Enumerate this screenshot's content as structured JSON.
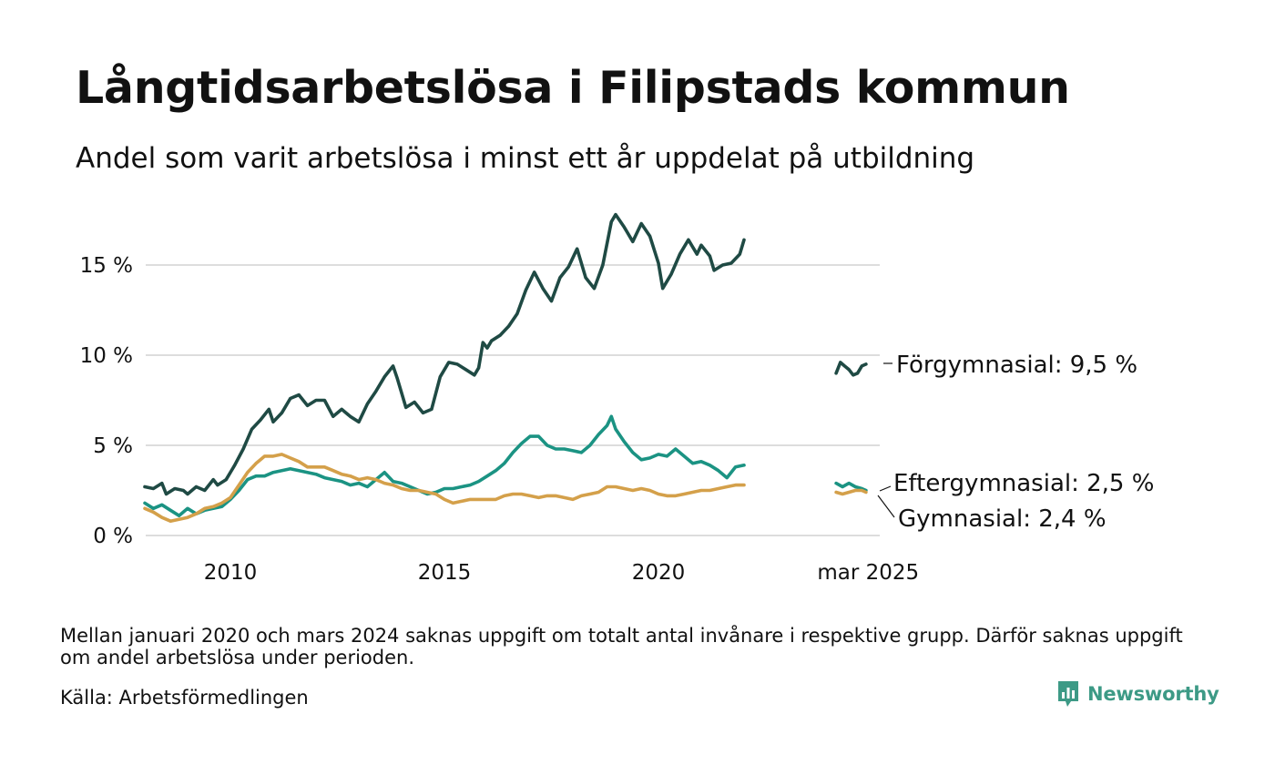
{
  "title": "Långtidsarbetslösa i Filipstads kommun",
  "subtitle": "Andel som varit arbetslösa i minst ett år uppdelat på utbildning",
  "note": "Mellan januari 2020 och mars 2024 saknas uppgift om totalt antal invånare i respektive grupp. Därför saknas uppgift om andel arbetslösa under perioden.",
  "source": "Källa: Arbetsförmedlingen",
  "brand": {
    "name": "Newsworthy",
    "color": "#3d9a86"
  },
  "chart_data": {
    "type": "line",
    "title": "Långtidsarbetslösa i Filipstads kommun",
    "subtitle": "Andel som varit arbetslösa i minst ett år uppdelat på utbildning",
    "x_ticks": [
      {
        "x": 2010.0,
        "label": "2010"
      },
      {
        "x": 2015.0,
        "label": "2015"
      },
      {
        "x": 2020.0,
        "label": "2020"
      },
      {
        "x": 2024.9,
        "label": "mar 2025"
      }
    ],
    "y_ticks": [
      {
        "y": 0,
        "label": "0 %"
      },
      {
        "y": 5,
        "label": "5 %"
      },
      {
        "y": 10,
        "label": "10 %"
      },
      {
        "y": 15,
        "label": "15 %"
      }
    ],
    "xlim": [
      2007.95,
      2025.35
    ],
    "ylim": [
      0,
      18
    ],
    "grid": true,
    "series": [
      {
        "name": "Förgymnasial",
        "end_label": "Förgymnasial: 9,5 %",
        "color": "#1f4a44",
        "segments": [
          [
            [
              2008.0,
              2.7
            ],
            [
              2008.2,
              2.6
            ],
            [
              2008.4,
              2.9
            ],
            [
              2008.5,
              2.3
            ],
            [
              2008.7,
              2.6
            ],
            [
              2008.9,
              2.5
            ],
            [
              2009.0,
              2.3
            ],
            [
              2009.2,
              2.7
            ],
            [
              2009.4,
              2.5
            ],
            [
              2009.6,
              3.1
            ],
            [
              2009.7,
              2.8
            ],
            [
              2009.9,
              3.1
            ],
            [
              2010.1,
              3.9
            ],
            [
              2010.3,
              4.8
            ],
            [
              2010.5,
              5.9
            ],
            [
              2010.7,
              6.4
            ],
            [
              2010.9,
              7.0
            ],
            [
              2011.0,
              6.3
            ],
            [
              2011.2,
              6.8
            ],
            [
              2011.4,
              7.6
            ],
            [
              2011.6,
              7.8
            ],
            [
              2011.8,
              7.2
            ],
            [
              2012.0,
              7.5
            ],
            [
              2012.2,
              7.5
            ],
            [
              2012.4,
              6.6
            ],
            [
              2012.6,
              7.0
            ],
            [
              2012.8,
              6.6
            ],
            [
              2013.0,
              6.3
            ],
            [
              2013.2,
              7.3
            ],
            [
              2013.4,
              8.0
            ],
            [
              2013.6,
              8.8
            ],
            [
              2013.8,
              9.4
            ],
            [
              2013.9,
              8.7
            ],
            [
              2014.1,
              7.1
            ],
            [
              2014.3,
              7.4
            ],
            [
              2014.5,
              6.8
            ],
            [
              2014.7,
              7.0
            ],
            [
              2014.9,
              8.8
            ],
            [
              2015.1,
              9.6
            ],
            [
              2015.3,
              9.5
            ],
            [
              2015.5,
              9.2
            ],
            [
              2015.7,
              8.9
            ],
            [
              2015.8,
              9.3
            ],
            [
              2015.9,
              10.7
            ],
            [
              2016.0,
              10.4
            ],
            [
              2016.1,
              10.8
            ],
            [
              2016.3,
              11.1
            ],
            [
              2016.5,
              11.6
            ],
            [
              2016.7,
              12.3
            ],
            [
              2016.9,
              13.6
            ],
            [
              2017.1,
              14.6
            ],
            [
              2017.3,
              13.7
            ],
            [
              2017.5,
              13.0
            ],
            [
              2017.7,
              14.3
            ],
            [
              2017.9,
              14.9
            ],
            [
              2018.1,
              15.9
            ],
            [
              2018.3,
              14.3
            ],
            [
              2018.5,
              13.7
            ],
            [
              2018.7,
              15.0
            ],
            [
              2018.9,
              17.4
            ],
            [
              2019.0,
              17.8
            ],
            [
              2019.2,
              17.1
            ],
            [
              2019.4,
              16.3
            ],
            [
              2019.6,
              17.3
            ],
            [
              2019.8,
              16.6
            ],
            [
              2020.0,
              15.1
            ],
            [
              2020.1,
              13.7
            ],
            [
              2020.3,
              14.5
            ],
            [
              2020.5,
              15.6
            ],
            [
              2020.7,
              16.4
            ],
            [
              2020.9,
              15.6
            ],
            [
              2021.0,
              16.1
            ],
            [
              2021.2,
              15.5
            ],
            [
              2021.3,
              14.7
            ],
            [
              2021.5,
              15.0
            ],
            [
              2021.7,
              15.1
            ],
            [
              2021.9,
              15.6
            ],
            [
              2022.0,
              16.4
            ]
          ],
          [
            [
              2024.15,
              9.0
            ],
            [
              2024.25,
              9.6
            ],
            [
              2024.35,
              9.4
            ],
            [
              2024.45,
              9.2
            ],
            [
              2024.55,
              8.9
            ],
            [
              2024.65,
              9.0
            ],
            [
              2024.75,
              9.4
            ],
            [
              2024.85,
              9.5
            ]
          ]
        ]
      },
      {
        "name": "Eftergymnasial",
        "end_label": "Eftergymnasial: 2,5 %",
        "color": "#1b9383",
        "segments": [
          [
            [
              2008.0,
              1.8
            ],
            [
              2008.2,
              1.5
            ],
            [
              2008.4,
              1.7
            ],
            [
              2008.6,
              1.4
            ],
            [
              2008.8,
              1.1
            ],
            [
              2009.0,
              1.5
            ],
            [
              2009.2,
              1.2
            ],
            [
              2009.4,
              1.4
            ],
            [
              2009.6,
              1.5
            ],
            [
              2009.8,
              1.6
            ],
            [
              2010.0,
              2.0
            ],
            [
              2010.2,
              2.5
            ],
            [
              2010.4,
              3.1
            ],
            [
              2010.6,
              3.3
            ],
            [
              2010.8,
              3.3
            ],
            [
              2011.0,
              3.5
            ],
            [
              2011.2,
              3.6
            ],
            [
              2011.4,
              3.7
            ],
            [
              2011.6,
              3.6
            ],
            [
              2011.8,
              3.5
            ],
            [
              2012.0,
              3.4
            ],
            [
              2012.2,
              3.2
            ],
            [
              2012.4,
              3.1
            ],
            [
              2012.6,
              3.0
            ],
            [
              2012.8,
              2.8
            ],
            [
              2013.0,
              2.9
            ],
            [
              2013.2,
              2.7
            ],
            [
              2013.4,
              3.1
            ],
            [
              2013.6,
              3.5
            ],
            [
              2013.8,
              3.0
            ],
            [
              2014.0,
              2.9
            ],
            [
              2014.2,
              2.7
            ],
            [
              2014.4,
              2.5
            ],
            [
              2014.6,
              2.3
            ],
            [
              2014.8,
              2.4
            ],
            [
              2015.0,
              2.6
            ],
            [
              2015.2,
              2.6
            ],
            [
              2015.4,
              2.7
            ],
            [
              2015.6,
              2.8
            ],
            [
              2015.8,
              3.0
            ],
            [
              2016.0,
              3.3
            ],
            [
              2016.2,
              3.6
            ],
            [
              2016.4,
              4.0
            ],
            [
              2016.6,
              4.6
            ],
            [
              2016.8,
              5.1
            ],
            [
              2017.0,
              5.5
            ],
            [
              2017.2,
              5.5
            ],
            [
              2017.4,
              5.0
            ],
            [
              2017.6,
              4.8
            ],
            [
              2017.8,
              4.8
            ],
            [
              2018.0,
              4.7
            ],
            [
              2018.2,
              4.6
            ],
            [
              2018.4,
              5.0
            ],
            [
              2018.6,
              5.6
            ],
            [
              2018.8,
              6.1
            ],
            [
              2018.9,
              6.6
            ],
            [
              2019.0,
              5.9
            ],
            [
              2019.2,
              5.2
            ],
            [
              2019.4,
              4.6
            ],
            [
              2019.6,
              4.2
            ],
            [
              2019.8,
              4.3
            ],
            [
              2020.0,
              4.5
            ],
            [
              2020.2,
              4.4
            ],
            [
              2020.4,
              4.8
            ],
            [
              2020.6,
              4.4
            ],
            [
              2020.8,
              4.0
            ],
            [
              2021.0,
              4.1
            ],
            [
              2021.2,
              3.9
            ],
            [
              2021.4,
              3.6
            ],
            [
              2021.6,
              3.2
            ],
            [
              2021.8,
              3.8
            ],
            [
              2022.0,
              3.9
            ]
          ],
          [
            [
              2024.15,
              2.9
            ],
            [
              2024.3,
              2.7
            ],
            [
              2024.45,
              2.9
            ],
            [
              2024.6,
              2.7
            ],
            [
              2024.75,
              2.6
            ],
            [
              2024.85,
              2.5
            ]
          ]
        ]
      },
      {
        "name": "Gymnasial",
        "end_label": "Gymnasial: 2,4 %",
        "color": "#d4a04a",
        "segments": [
          [
            [
              2008.0,
              1.5
            ],
            [
              2008.2,
              1.3
            ],
            [
              2008.4,
              1.0
            ],
            [
              2008.6,
              0.8
            ],
            [
              2008.8,
              0.9
            ],
            [
              2009.0,
              1.0
            ],
            [
              2009.2,
              1.2
            ],
            [
              2009.4,
              1.5
            ],
            [
              2009.6,
              1.6
            ],
            [
              2009.8,
              1.8
            ],
            [
              2010.0,
              2.1
            ],
            [
              2010.2,
              2.8
            ],
            [
              2010.4,
              3.5
            ],
            [
              2010.6,
              4.0
            ],
            [
              2010.8,
              4.4
            ],
            [
              2011.0,
              4.4
            ],
            [
              2011.2,
              4.5
            ],
            [
              2011.4,
              4.3
            ],
            [
              2011.6,
              4.1
            ],
            [
              2011.8,
              3.8
            ],
            [
              2012.0,
              3.8
            ],
            [
              2012.2,
              3.8
            ],
            [
              2012.4,
              3.6
            ],
            [
              2012.6,
              3.4
            ],
            [
              2012.8,
              3.3
            ],
            [
              2013.0,
              3.1
            ],
            [
              2013.2,
              3.2
            ],
            [
              2013.4,
              3.1
            ],
            [
              2013.6,
              2.9
            ],
            [
              2013.8,
              2.8
            ],
            [
              2014.0,
              2.6
            ],
            [
              2014.2,
              2.5
            ],
            [
              2014.4,
              2.5
            ],
            [
              2014.6,
              2.4
            ],
            [
              2014.8,
              2.3
            ],
            [
              2015.0,
              2.0
            ],
            [
              2015.2,
              1.8
            ],
            [
              2015.4,
              1.9
            ],
            [
              2015.6,
              2.0
            ],
            [
              2015.8,
              2.0
            ],
            [
              2016.0,
              2.0
            ],
            [
              2016.2,
              2.0
            ],
            [
              2016.4,
              2.2
            ],
            [
              2016.6,
              2.3
            ],
            [
              2016.8,
              2.3
            ],
            [
              2017.0,
              2.2
            ],
            [
              2017.2,
              2.1
            ],
            [
              2017.4,
              2.2
            ],
            [
              2017.6,
              2.2
            ],
            [
              2017.8,
              2.1
            ],
            [
              2018.0,
              2.0
            ],
            [
              2018.2,
              2.2
            ],
            [
              2018.4,
              2.3
            ],
            [
              2018.6,
              2.4
            ],
            [
              2018.8,
              2.7
            ],
            [
              2019.0,
              2.7
            ],
            [
              2019.2,
              2.6
            ],
            [
              2019.4,
              2.5
            ],
            [
              2019.6,
              2.6
            ],
            [
              2019.8,
              2.5
            ],
            [
              2020.0,
              2.3
            ],
            [
              2020.2,
              2.2
            ],
            [
              2020.4,
              2.2
            ],
            [
              2020.6,
              2.3
            ],
            [
              2020.8,
              2.4
            ],
            [
              2021.0,
              2.5
            ],
            [
              2021.2,
              2.5
            ],
            [
              2021.4,
              2.6
            ],
            [
              2021.6,
              2.7
            ],
            [
              2021.8,
              2.8
            ],
            [
              2022.0,
              2.8
            ]
          ],
          [
            [
              2024.15,
              2.4
            ],
            [
              2024.3,
              2.3
            ],
            [
              2024.45,
              2.4
            ],
            [
              2024.6,
              2.5
            ],
            [
              2024.75,
              2.5
            ],
            [
              2024.85,
              2.4
            ]
          ]
        ]
      }
    ]
  }
}
